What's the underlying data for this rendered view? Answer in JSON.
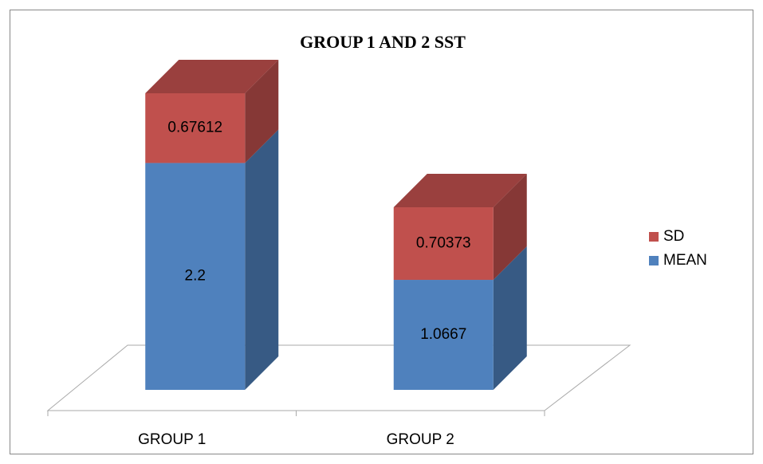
{
  "chart_data": {
    "type": "bar3d_stacked",
    "title": "GROUP 1 AND 2 SST",
    "categories": [
      "GROUP 1",
      "GROUP 2"
    ],
    "series": [
      {
        "name": "MEAN",
        "color": "#4f81bd",
        "values": [
          2.2,
          1.0667
        ]
      },
      {
        "name": "SD",
        "color": "#c0504d",
        "values": [
          0.67612,
          0.70373
        ]
      }
    ],
    "legend": "right"
  }
}
